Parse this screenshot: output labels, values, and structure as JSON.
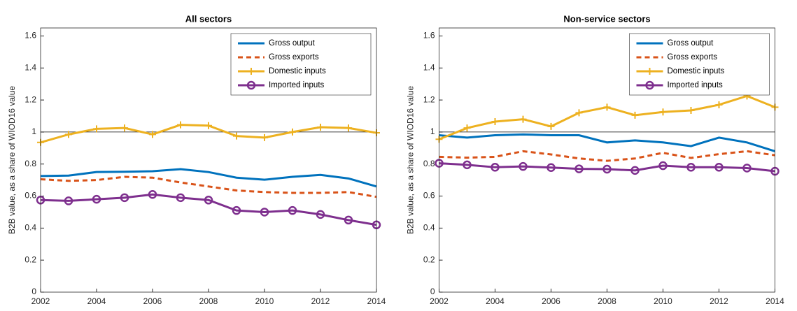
{
  "chart_data": [
    {
      "type": "line",
      "title": "All sectors",
      "ylabel": "B2B value, as a share of WIOD16 value",
      "x": [
        2002,
        2003,
        2004,
        2005,
        2006,
        2007,
        2008,
        2009,
        2010,
        2011,
        2012,
        2013,
        2014
      ],
      "xlim": [
        2002,
        2014
      ],
      "xticks": [
        2002,
        2004,
        2006,
        2008,
        2010,
        2012,
        2014
      ],
      "ylim": [
        0,
        1.65
      ],
      "yticks": [
        0,
        0.2,
        0.4,
        0.6,
        0.8,
        1,
        1.2,
        1.4,
        1.6
      ],
      "reference_line": 1,
      "legend": "northeast",
      "series": [
        {
          "name": "Gross output",
          "color": "#0072bd",
          "values": [
            0.725,
            0.728,
            0.75,
            0.752,
            0.755,
            0.768,
            0.75,
            0.715,
            0.702,
            0.72,
            0.732,
            0.71,
            0.66
          ]
        },
        {
          "name": "Gross exports",
          "color": "#d95319",
          "dash": true,
          "values": [
            0.705,
            0.695,
            0.7,
            0.72,
            0.715,
            0.685,
            0.66,
            0.635,
            0.625,
            0.62,
            0.62,
            0.625,
            0.595
          ]
        },
        {
          "name": "Domestic inputs",
          "color": "#edb120",
          "marker": "+",
          "values": [
            0.935,
            0.985,
            1.02,
            1.025,
            0.985,
            1.045,
            1.04,
            0.975,
            0.965,
            1.0,
            1.03,
            1.025,
            0.995
          ]
        },
        {
          "name": "Imported inputs",
          "color": "#7e2f8e",
          "marker": "o",
          "values": [
            0.575,
            0.57,
            0.58,
            0.59,
            0.61,
            0.59,
            0.575,
            0.51,
            0.5,
            0.51,
            0.485,
            0.45,
            0.42
          ]
        }
      ]
    },
    {
      "type": "line",
      "title": "Non-service sectors",
      "ylabel": "B2B value, as a share of WIOD16 value",
      "x": [
        2002,
        2003,
        2004,
        2005,
        2006,
        2007,
        2008,
        2009,
        2010,
        2011,
        2012,
        2013,
        2014
      ],
      "xlim": [
        2002,
        2014
      ],
      "xticks": [
        2002,
        2004,
        2006,
        2008,
        2010,
        2012,
        2014
      ],
      "ylim": [
        0,
        1.65
      ],
      "yticks": [
        0,
        0.2,
        0.4,
        0.6,
        0.8,
        1,
        1.2,
        1.4,
        1.6
      ],
      "reference_line": 1,
      "legend": "northeast",
      "series": [
        {
          "name": "Gross output",
          "color": "#0072bd",
          "values": [
            0.98,
            0.965,
            0.98,
            0.985,
            0.98,
            0.98,
            0.935,
            0.948,
            0.935,
            0.912,
            0.965,
            0.935,
            0.88
          ]
        },
        {
          "name": "Gross exports",
          "color": "#d95319",
          "dash": true,
          "values": [
            0.845,
            0.84,
            0.845,
            0.88,
            0.86,
            0.835,
            0.82,
            0.835,
            0.87,
            0.838,
            0.862,
            0.88,
            0.855
          ]
        },
        {
          "name": "Domestic inputs",
          "color": "#edb120",
          "marker": "+",
          "values": [
            0.955,
            1.025,
            1.065,
            1.08,
            1.035,
            1.12,
            1.155,
            1.105,
            1.125,
            1.135,
            1.17,
            1.225,
            1.155
          ]
        },
        {
          "name": "Imported inputs",
          "color": "#7e2f8e",
          "marker": "o",
          "values": [
            0.805,
            0.795,
            0.78,
            0.785,
            0.778,
            0.77,
            0.768,
            0.76,
            0.79,
            0.78,
            0.78,
            0.775,
            0.755
          ]
        }
      ]
    }
  ]
}
